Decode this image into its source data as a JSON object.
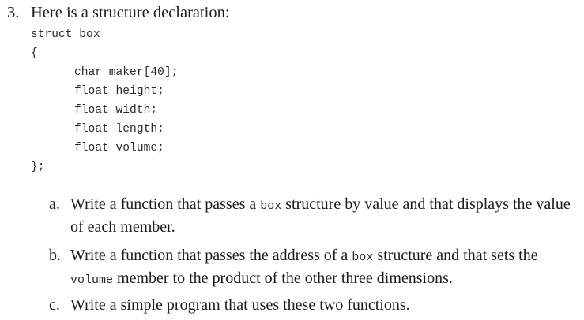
{
  "question": {
    "number": "3.",
    "prompt": "Here is a structure declaration:"
  },
  "code": {
    "lines": [
      "struct box",
      "{",
      "char maker[40];",
      "float height;",
      "float width;",
      "float length;",
      "float volume;",
      "};"
    ]
  },
  "subquestions": [
    {
      "label": "a.",
      "parts": [
        "Write a function that passes a ",
        "box",
        " structure by value and that displays the value of each member."
      ]
    },
    {
      "label": "b.",
      "parts": [
        "Write a function that passes the address of a ",
        "box",
        " structure and that sets the ",
        "volume",
        " member to the product of the other three dimensions."
      ]
    },
    {
      "label": "c.",
      "parts": [
        "Write a simple program that uses these two functions."
      ]
    }
  ]
}
